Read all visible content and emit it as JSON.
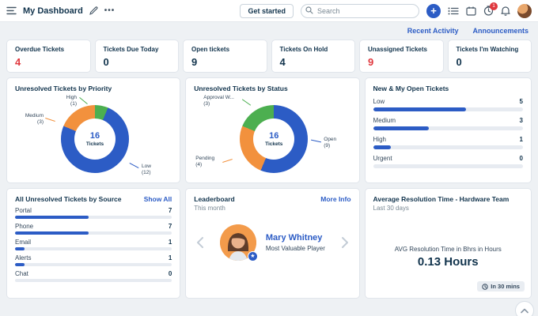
{
  "header": {
    "title": "My Dashboard",
    "get_started_label": "Get started",
    "search_placeholder": "Search",
    "timer_badge_count": "1"
  },
  "subbar": {
    "recent_activity": "Recent Activity",
    "announcements": "Announcements"
  },
  "colors": {
    "accent_blue": "#2c5cc5",
    "chart_blue": "#2c5cc5",
    "chart_orange": "#f2913d",
    "chart_green": "#4caf50",
    "alert_red": "#e0383e",
    "navy_text": "#12344d"
  },
  "stats": [
    {
      "label": "Overdue Tickets",
      "value": "4"
    },
    {
      "label": "Tickets Due Today",
      "value": "0"
    },
    {
      "label": "Open tickets",
      "value": "9"
    },
    {
      "label": "Tickets On Hold",
      "value": "4"
    },
    {
      "label": "Unassigned Tickets",
      "value": "9"
    },
    {
      "label": "Tickets I'm Watching",
      "value": "0"
    }
  ],
  "chart_data": [
    {
      "type": "donut",
      "title": "Unresolved Tickets by Priority",
      "center_value": "16",
      "center_label": "Tickets",
      "segments": [
        {
          "name": "High",
          "count": "(1)",
          "value": 1,
          "color": "#4caf50"
        },
        {
          "name": "Low",
          "count": "(12)",
          "value": 12,
          "color": "#2c5cc5"
        },
        {
          "name": "Medium",
          "count": "(3)",
          "value": 3,
          "color": "#f2913d"
        }
      ]
    },
    {
      "type": "donut",
      "title": "Unresolved Tickets by Status",
      "center_value": "16",
      "center_label": "Tickets",
      "segments": [
        {
          "name": "Open",
          "count": "(9)",
          "value": 9,
          "color": "#2c5cc5"
        },
        {
          "name": "Pending",
          "count": "(4)",
          "value": 4,
          "color": "#f2913d"
        },
        {
          "name": "Approval W...",
          "count": "(3)",
          "value": 3,
          "color": "#4caf50"
        }
      ]
    },
    {
      "type": "bar",
      "title": "New & My Open Tickets",
      "rows": [
        {
          "label": "Low",
          "value": "5",
          "pct": 62
        },
        {
          "label": "Medium",
          "value": "3",
          "pct": 37
        },
        {
          "label": "High",
          "value": "1",
          "pct": 12
        },
        {
          "label": "Urgent",
          "value": "0",
          "pct": 0
        }
      ]
    },
    {
      "type": "bar",
      "title": "All Unresolved Tickets by Source",
      "link": "Show All",
      "rows": [
        {
          "label": "Portal",
          "value": "7",
          "pct": 47
        },
        {
          "label": "Phone",
          "value": "7",
          "pct": 47
        },
        {
          "label": "Email",
          "value": "1",
          "pct": 6
        },
        {
          "label": "Alerts",
          "value": "1",
          "pct": 6
        },
        {
          "label": "Chat",
          "value": "0",
          "pct": 0
        }
      ]
    }
  ],
  "leaderboard": {
    "title": "Leaderboard",
    "link": "More Info",
    "period": "This month",
    "winner_name": "Mary Whitney",
    "winner_award": "Most Valuable Player"
  },
  "resolution": {
    "title": "Average Resolution Time - Hardware Team",
    "period": "Last 30 days",
    "metric_label": "AVG Resolution Time in Bhrs in Hours",
    "metric_value": "0.13 Hours",
    "refresh_label": "In 30 mins"
  }
}
